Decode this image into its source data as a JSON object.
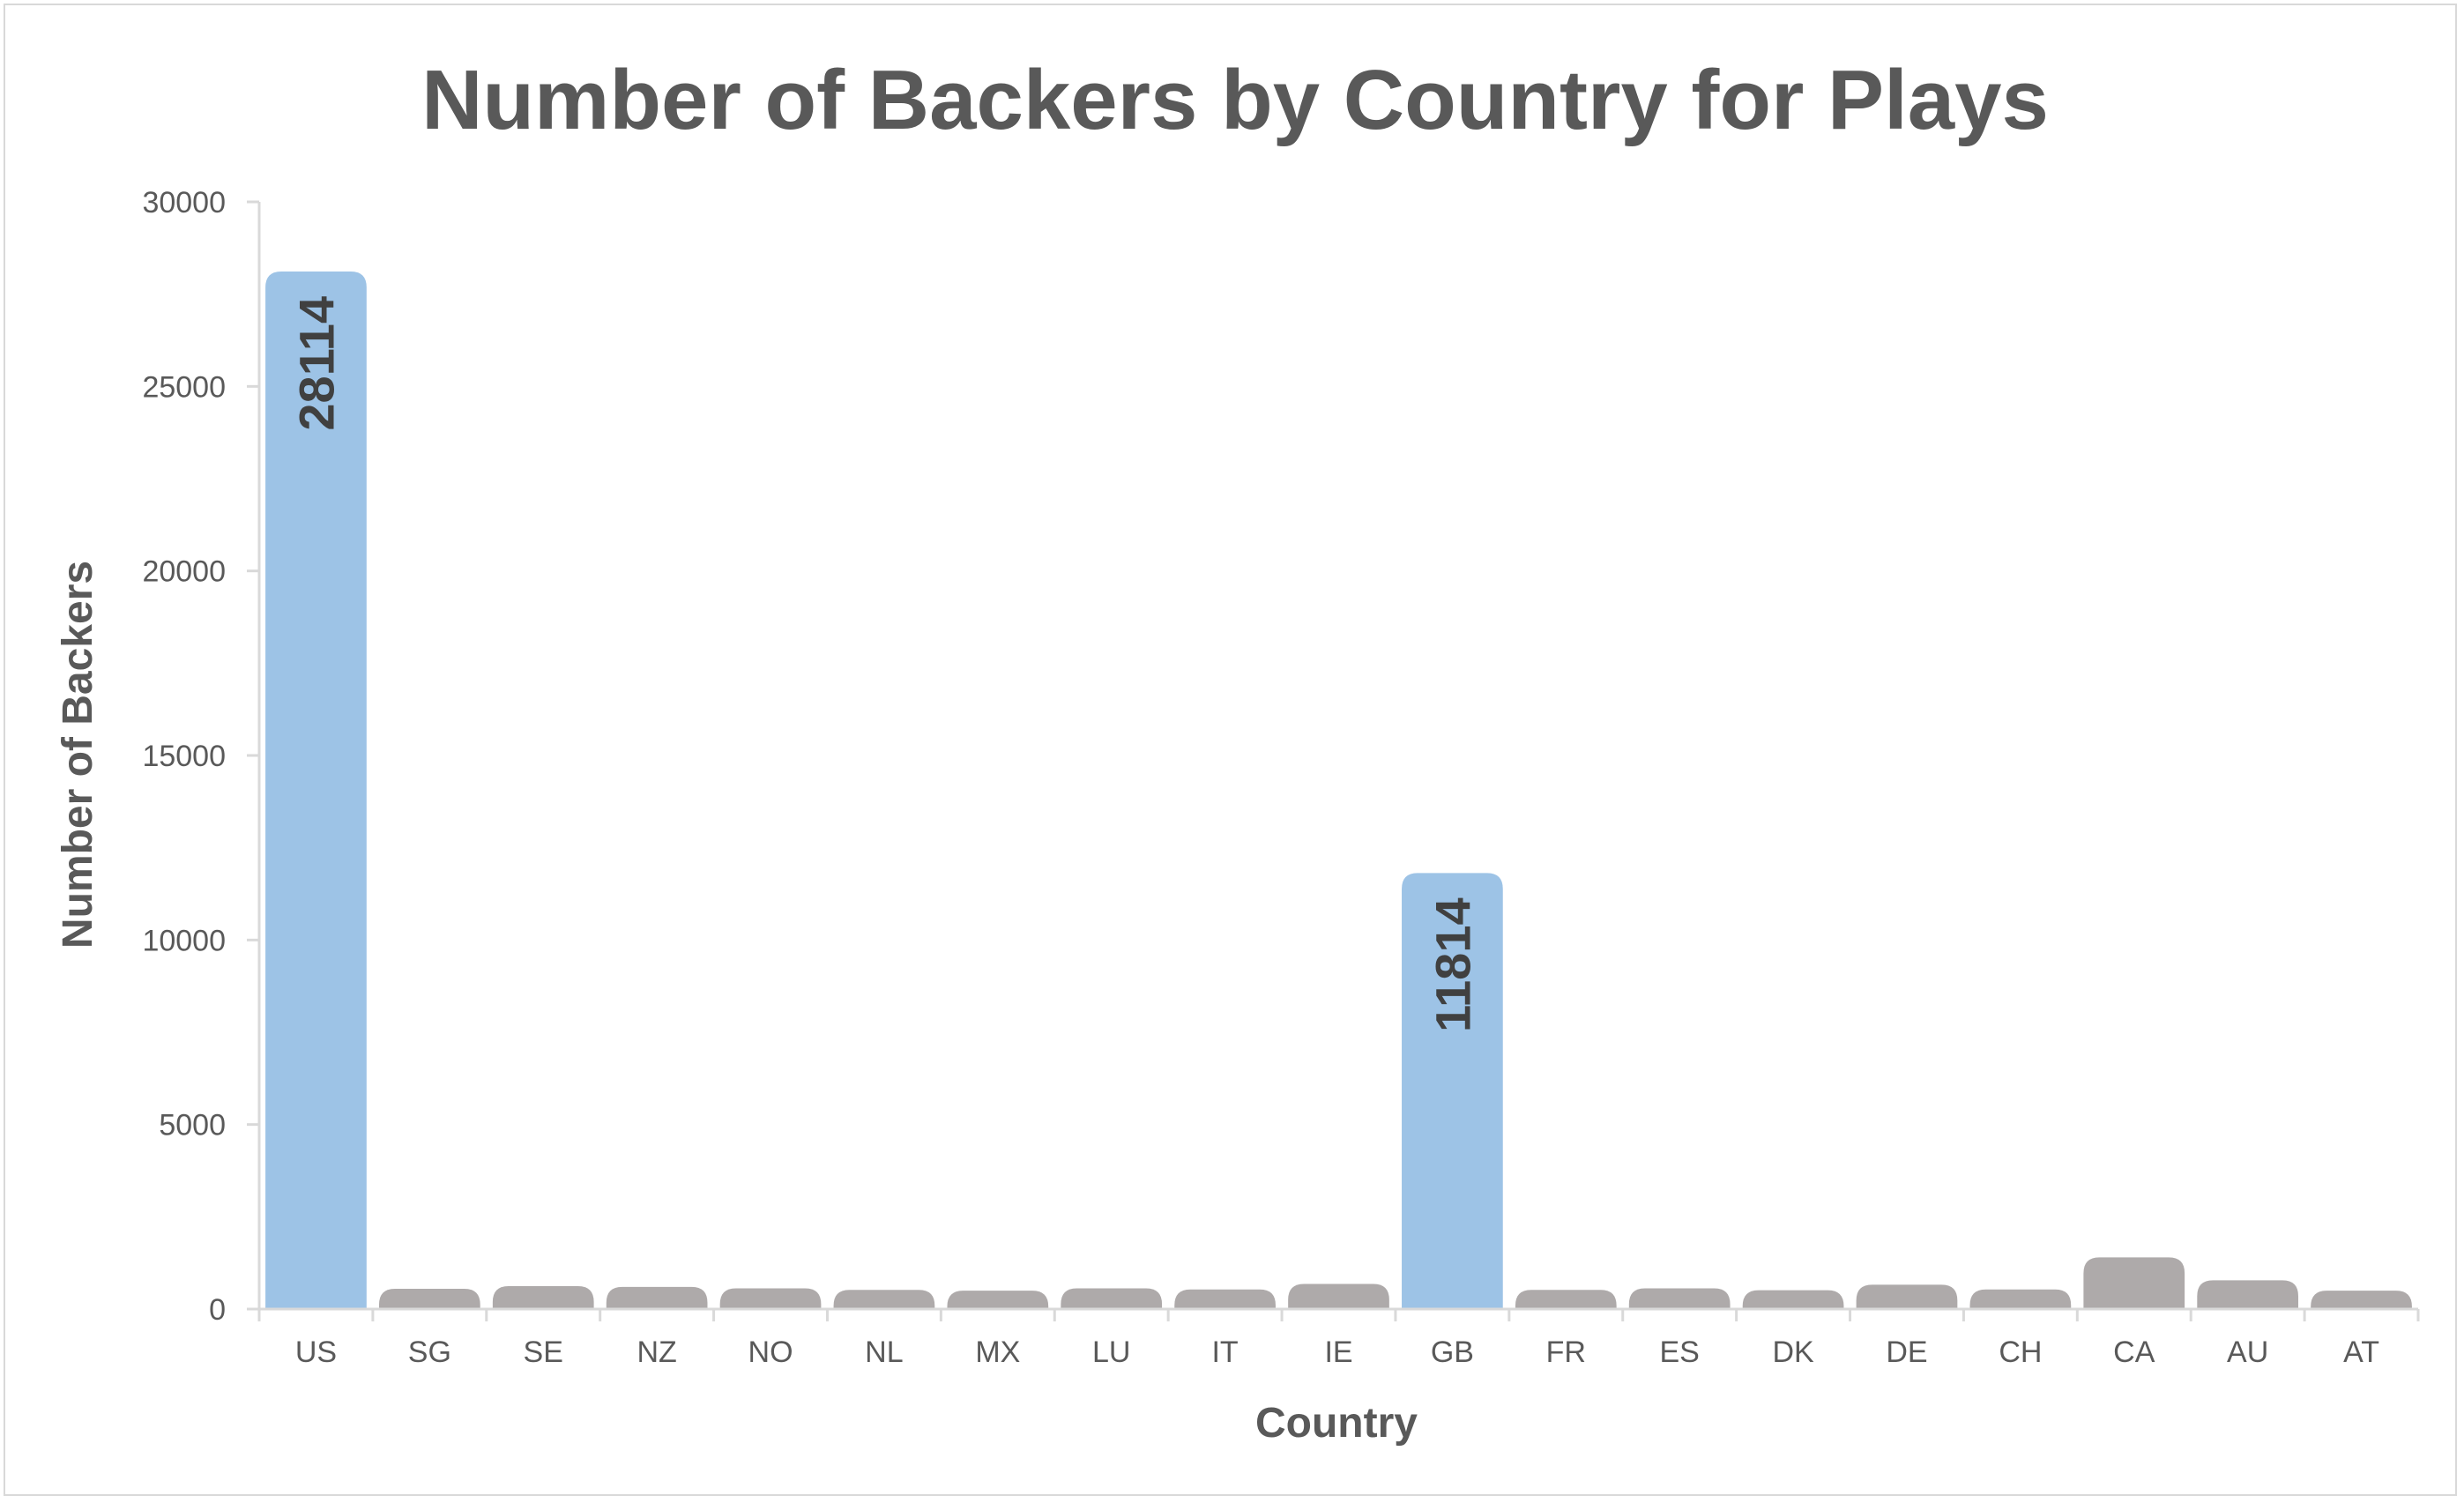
{
  "chart_data": {
    "type": "bar",
    "title": "Number of Backers by Country for Plays",
    "xlabel": "Country",
    "ylabel": "Number of Backers",
    "categories": [
      "US",
      "SG",
      "SE",
      "NZ",
      "NO",
      "NL",
      "MX",
      "LU",
      "IT",
      "IE",
      "GB",
      "FR",
      "ES",
      "DK",
      "DE",
      "CH",
      "CA",
      "AU",
      "AT"
    ],
    "values": [
      28114,
      550,
      620,
      600,
      560,
      520,
      500,
      560,
      530,
      680,
      11814,
      520,
      560,
      510,
      660,
      530,
      1400,
      780,
      500
    ],
    "data_labels": {
      "US": "28114",
      "GB": "11814"
    },
    "highlighted": [
      "US",
      "GB"
    ],
    "ylim": [
      0,
      30000
    ],
    "yticks": [
      0,
      5000,
      10000,
      15000,
      20000,
      25000,
      30000
    ],
    "grid": false,
    "legend": "none",
    "colors": {
      "highlight": "#9dc3e6",
      "default": "#aeaaaa",
      "text": "#595959",
      "axis": "#d9d9d9"
    }
  }
}
